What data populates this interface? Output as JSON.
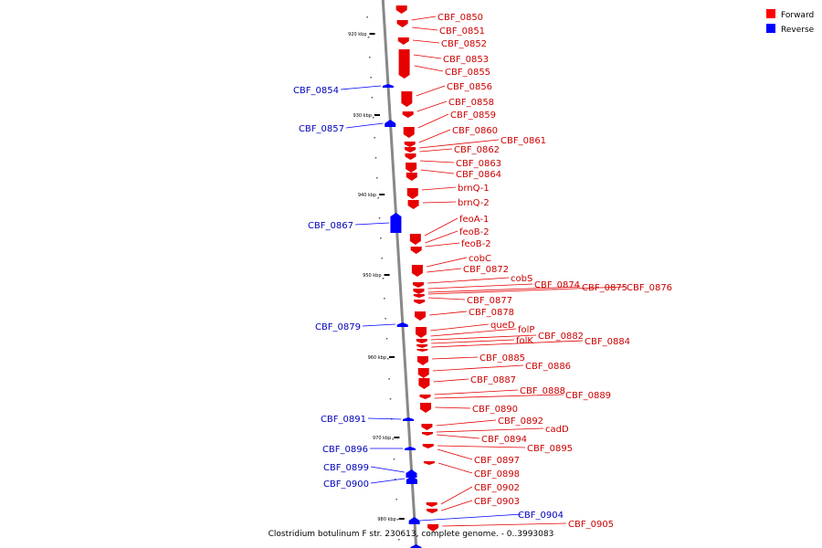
{
  "caption": "Clostridium botulinum F str. 230613, complete genome. - 0..3993083",
  "legend": [
    {
      "label": "Forward",
      "color": "#ff0000"
    },
    {
      "label": "Reverse",
      "color": "#0000ff"
    }
  ],
  "colors": {
    "forward": "#e60000",
    "reverse": "#0000ff",
    "backbone": "#888888",
    "forward_label": "#cc0000",
    "reverse_label": "#0000bb"
  },
  "ticks": [
    "920 kbp",
    "930 kbp",
    "940 kbp",
    "950 kbp",
    "960 kbp",
    "970 kbp",
    "980 kbp"
  ],
  "forward_labels": [
    "CBF_0850",
    "CBF_0851",
    "CBF_0852",
    "CBF_0853",
    "CBF_0855",
    "CBF_0856",
    "CBF_0858",
    "CBF_0859",
    "CBF_0860",
    "CBF_0861",
    "CBF_0862",
    "CBF_0863",
    "CBF_0864",
    "brnQ-1",
    "brnQ-2",
    "feoA-1",
    "feoB-2",
    "feoB-2",
    "cobC",
    "CBF_0872",
    "cobS",
    "CBF_0874",
    "CBF_0875",
    "CBF_0876",
    "CBF_0877",
    "CBF_0878",
    "queD",
    "folP",
    "CBF_0882",
    "folK",
    "CBF_0884",
    "CBF_0885",
    "CBF_0886",
    "CBF_0887",
    "CBF_0888",
    "CBF_0889",
    "CBF_0890",
    "CBF_0892",
    "cadD",
    "CBF_0894",
    "CBF_0895",
    "CBF_0897",
    "CBF_0898",
    "CBF_0902",
    "CBF_0903",
    "CBF_0905"
  ],
  "reverse_labels": [
    "CBF_0854",
    "CBF_0857",
    "CBF_0867",
    "CBF_0879",
    "CBF_0891",
    "CBF_0896",
    "CBF_0899",
    "CBF_0900",
    "CBF_0904"
  ]
}
